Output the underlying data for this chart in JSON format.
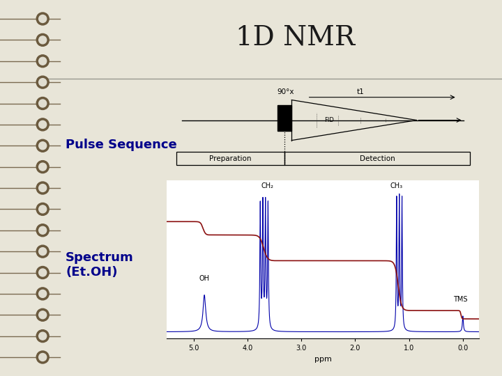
{
  "title": "1D NMR",
  "title_fontsize": 28,
  "title_color": "#1a1a1a",
  "bg_main": "#d0cdc4",
  "bg_left_strip": "#c8c4b8",
  "bg_panel": "#e8e5d8",
  "bg_white": "#ffffff",
  "spiral_wire_color": "#8B7355",
  "spiral_coil_color": "#6b5a3e",
  "spiral_hole_color": "#e0ddd0",
  "label_pulse": "Pulse Sequence",
  "label_spectrum": "Spectrum\n(Et.OH)",
  "label_color": "#00008B",
  "label_fontsize": 13,
  "pulse_label_90": "90°x",
  "pulse_label_t": "t1",
  "pulse_prep": "Preparation",
  "pulse_det": "Detection",
  "spectrum_xlabel": "ppm",
  "annot_OH": "OH",
  "annot_CH2": "CH₂",
  "annot_CH3": "CH₃",
  "annot_TMS": "TMS",
  "blue_color": "#0000aa",
  "red_color": "#8b1010",
  "divider_color": "#999990"
}
